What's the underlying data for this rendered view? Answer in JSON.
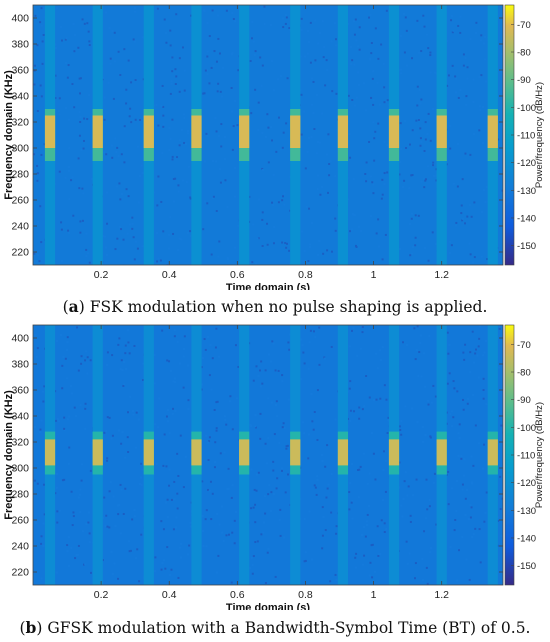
{
  "panels": [
    {
      "caption_label": "a",
      "caption_text": "FSK modulation when no pulse shaping is applied.",
      "chart_data": {
        "type": "heatmap",
        "xlabel": "Time domain (s)",
        "ylabel": "Frequency domain (KHz)",
        "xlim": [
          0,
          1.38
        ],
        "ylim": [
          210,
          410
        ],
        "x_ticks": [
          0.2,
          0.4,
          0.6,
          0.8,
          1,
          1.2
        ],
        "x_tick_labels": [
          "0.2",
          "0.4",
          "0.6",
          "0.8",
          "1",
          "1.2"
        ],
        "y_ticks": [
          220,
          240,
          260,
          280,
          300,
          320,
          340,
          360,
          380,
          400
        ],
        "colorbar_label": "Power/frequency (dB/Hz)",
        "colorbar_range": [
          -157,
          -63
        ],
        "colorbar_ticks": [
          -70,
          -80,
          -90,
          -100,
          -110,
          -120,
          -130,
          -140,
          -150
        ],
        "background_level": -130,
        "burst_centers_s": [
          0.05,
          0.19,
          0.34,
          0.48,
          0.62,
          0.77,
          0.91,
          1.06,
          1.2,
          1.35
        ],
        "burst_width_s": 0.03,
        "bands": [
          {
            "f_low": 300,
            "f_high": 325,
            "level": -72
          },
          {
            "f_low": 290,
            "f_high": 330,
            "level": -95
          },
          {
            "f_low": 210,
            "f_high": 410,
            "level": -120
          }
        ]
      }
    },
    {
      "caption_label": "b",
      "caption_text": "GFSK modulation with a Bandwidth-Symbol Time (BT) of 0.5.",
      "chart_data": {
        "type": "heatmap",
        "xlabel": "Time domain (s)",
        "ylabel": "Frequency domain (KHz)",
        "xlim": [
          0,
          1.38
        ],
        "ylim": [
          210,
          410
        ],
        "x_ticks": [
          0.2,
          0.4,
          0.6,
          0.8,
          1,
          1.2
        ],
        "x_tick_labels": [
          "0.2",
          "0.4",
          "0.6",
          "0.8",
          "1",
          "1.2"
        ],
        "y_ticks": [
          220,
          240,
          260,
          280,
          300,
          320,
          340,
          360,
          380,
          400
        ],
        "colorbar_label": "Power/frequency (dB/Hz)",
        "colorbar_range": [
          -157,
          -63
        ],
        "colorbar_ticks": [
          -70,
          -80,
          -90,
          -100,
          -110,
          -120,
          -130,
          -140,
          -150
        ],
        "background_level": -131,
        "burst_centers_s": [
          0.05,
          0.19,
          0.34,
          0.48,
          0.62,
          0.77,
          0.91,
          1.06,
          1.2,
          1.35
        ],
        "burst_width_s": 0.03,
        "bands": [
          {
            "f_low": 302,
            "f_high": 322,
            "level": -74
          },
          {
            "f_low": 295,
            "f_high": 328,
            "level": -100
          },
          {
            "f_low": 210,
            "f_high": 410,
            "level": -122
          }
        ]
      }
    }
  ]
}
